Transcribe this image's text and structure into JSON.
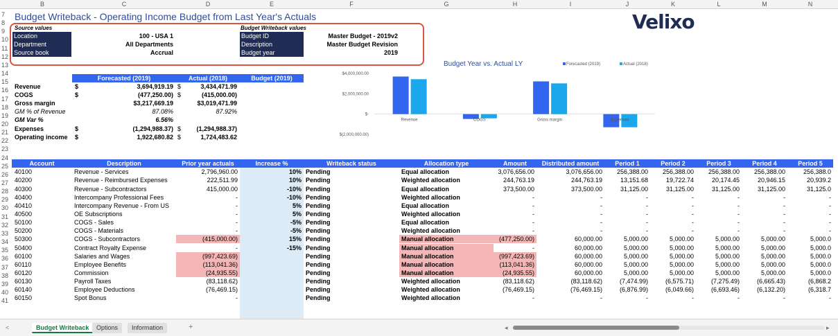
{
  "columns": [
    "B",
    "C",
    "D",
    "E",
    "F",
    "G",
    "H",
    "I",
    "J",
    "K",
    "L",
    "M",
    "N"
  ],
  "title": "Budget Writeback - Operating Income Budget from Last Year's Actuals",
  "logo": "Velixo",
  "source": {
    "header": "Source values",
    "rows": [
      {
        "label": "Location",
        "value": "100 - USA 1"
      },
      {
        "label": "Department",
        "value": "All Departments"
      },
      {
        "label": "Source book",
        "value": "Accrual"
      }
    ]
  },
  "writeback": {
    "header": "Budget Writeback values",
    "rows": [
      {
        "label": "Budget ID",
        "value": "Master Budget - 2019v2"
      },
      {
        "label": "Description",
        "value": "Master Budget Revision"
      },
      {
        "label": "Budget year",
        "value": "2019"
      }
    ]
  },
  "summary": {
    "headers": [
      "Forecasted (2019)",
      "Actual (2018)",
      "Budget (2019)"
    ],
    "rows": [
      {
        "label": "Revenue",
        "cur1": "$",
        "fc": "3,694,919.19",
        "cur2": "$",
        "act": "3,434,471.99",
        "style": "b"
      },
      {
        "label": "COGS",
        "cur1": "$",
        "fc": "(477,250.00)",
        "cur2": "$",
        "act": "(415,000.00)",
        "style": "b"
      },
      {
        "label": "Gross margin",
        "cur1": "",
        "fc": "$3,217,669.19",
        "cur2": "",
        "act": "$3,019,471.99",
        "style": "b"
      },
      {
        "label": "GM % of Revenue",
        "cur1": "",
        "fc": "87.08%",
        "cur2": "",
        "act": "87.92%",
        "style": "i"
      },
      {
        "label": "GM Var %",
        "cur1": "",
        "fc": "6.56%",
        "cur2": "",
        "act": "",
        "style": "bi"
      },
      {
        "label": "Expenses",
        "cur1": "$",
        "fc": "(1,294,988.37)",
        "cur2": "$",
        "act": "(1,294,988.37)",
        "style": "b"
      },
      {
        "label": "Operating income",
        "cur1": "$",
        "fc": "1,922,680.82",
        "cur2": "$",
        "act": "1,724,483.62",
        "style": "b"
      }
    ]
  },
  "chart_data": {
    "type": "bar",
    "title": "Budget Year vs. Actual LY",
    "categories": [
      "Revenue",
      "COGS",
      "Gross margin",
      "Expenses"
    ],
    "series": [
      {
        "name": "Forecasted (2019)",
        "color": "#3366ee",
        "values": [
          3694919.19,
          -477250.0,
          3217669.19,
          -1294988.37
        ]
      },
      {
        "name": "Actual (2018)",
        "color": "#1aa7ec",
        "values": [
          3434471.99,
          -415000.0,
          3019471.99,
          -1294988.37
        ]
      }
    ],
    "yticks": [
      "$4,000,000.00",
      "$2,000,000.00",
      "$-",
      "$(2,000,000.00)"
    ],
    "ytick_values": [
      4000000,
      2000000,
      0,
      -2000000
    ],
    "ylim": [
      -2000000,
      4000000
    ],
    "legend": "top-right",
    "grid": false
  },
  "table": {
    "headers": [
      "Account",
      "Description",
      "Prior year actuals",
      "Increase %",
      "Writeback status",
      "Allocation type",
      "Amount",
      "Distributed amount",
      "Period 1",
      "Period 2",
      "Period 3",
      "Period 4",
      "Period 5"
    ],
    "rows": [
      [
        "40100",
        "Revenue - Services",
        "2,796,960.00",
        "10%",
        "Pending",
        "Equal allocation",
        "3,076,656.00",
        "3,076,656.00",
        "256,388.00",
        "256,388.00",
        "256,388.00",
        "256,388.00",
        "256,388.0"
      ],
      [
        "40200",
        "Revenue - Reimbursed Expenses",
        "222,511.99",
        "10%",
        "Pending",
        "Weighted allocation",
        "244,763.19",
        "244,763.19",
        "13,151.68",
        "19,722.74",
        "20,174.45",
        "20,946.15",
        "20,939.2"
      ],
      [
        "40300",
        "Revenue - Subcontractors",
        "415,000.00",
        "-10%",
        "Pending",
        "Equal allocation",
        "373,500.00",
        "373,500.00",
        "31,125.00",
        "31,125.00",
        "31,125.00",
        "31,125.00",
        "31,125.0"
      ],
      [
        "40400",
        "Intercompany Professional Fees",
        "-",
        "-10%",
        "Pending",
        "Weighted allocation",
        "-",
        "-",
        "-",
        "-",
        "-",
        "-",
        "-"
      ],
      [
        "40410",
        "Intercompany Revenue - From US",
        "-",
        "5%",
        "Pending",
        "Equal allocation",
        "-",
        "-",
        "-",
        "-",
        "-",
        "-",
        "-"
      ],
      [
        "40500",
        "OE Subscriptions",
        "-",
        "5%",
        "Pending",
        "Weighted allocation",
        "-",
        "-",
        "-",
        "-",
        "-",
        "-",
        "-"
      ],
      [
        "50100",
        "COGS - Sales",
        "-",
        "-5%",
        "Pending",
        "Equal allocation",
        "-",
        "-",
        "-",
        "-",
        "-",
        "-",
        "-"
      ],
      [
        "50200",
        "COGS - Materials",
        "-",
        "-5%",
        "Pending",
        "Weighted allocation",
        "-",
        "-",
        "-",
        "-",
        "-",
        "-",
        "-"
      ],
      [
        "50300",
        "COGS - Subcontractors",
        "(415,000.00)",
        "15%",
        "Pending",
        "Manual allocation",
        "(477,250.00)",
        "60,000.00",
        "5,000.00",
        "5,000.00",
        "5,000.00",
        "5,000.00",
        "5,000.0"
      ],
      [
        "50400",
        "Contract Royalty Expense",
        "-",
        "-15%",
        "Pending",
        "Manual allocation",
        "-",
        "60,000.00",
        "5,000.00",
        "5,000.00",
        "5,000.00",
        "5,000.00",
        "5,000.0"
      ],
      [
        "60100",
        "Salaries and Wages",
        "(997,423.69)",
        "",
        "Pending",
        "Manual allocation",
        "(997,423.69)",
        "60,000.00",
        "5,000.00",
        "5,000.00",
        "5,000.00",
        "5,000.00",
        "5,000.0"
      ],
      [
        "60110",
        "Employee Benefits",
        "(113,041.36)",
        "",
        "Pending",
        "Manual allocation",
        "(113,041.36)",
        "60,000.00",
        "5,000.00",
        "5,000.00",
        "5,000.00",
        "5,000.00",
        "5,000.0"
      ],
      [
        "60120",
        "Commission",
        "(24,935.55)",
        "",
        "Pending",
        "Manual allocation",
        "(24,935.55)",
        "60,000.00",
        "5,000.00",
        "5,000.00",
        "5,000.00",
        "5,000.00",
        "5,000.0"
      ],
      [
        "60130",
        "Payroll Taxes",
        "(83,118.62)",
        "",
        "Pending",
        "Weighted allocation",
        "(83,118.62)",
        "(83,118.62)",
        "(7,474.99)",
        "(6,575.71)",
        "(7,275.49)",
        "(6,665.43)",
        "(6,868.2"
      ],
      [
        "60140",
        "Employee Deductions",
        "(76,469.15)",
        "",
        "Pending",
        "Weighted allocation",
        "(76,469.15)",
        "(76,469.15)",
        "(6,876.99)",
        "(6,049.66)",
        "(6,693.46)",
        "(6,132.20)",
        "(6,318.7"
      ],
      [
        "60150",
        "Spot Bonus",
        "-",
        "",
        "Pending",
        "Weighted allocation",
        "-",
        "-",
        "-",
        "-",
        "-",
        "-",
        "-"
      ]
    ],
    "pink_rows": [
      8,
      9,
      10,
      11,
      12
    ]
  },
  "row_numbers": [
    "7",
    "8",
    "9",
    "10",
    "11",
    "12",
    "13",
    "14",
    "15",
    "16",
    "17",
    "18",
    "19",
    "20",
    "21",
    "22",
    "23",
    "24",
    "25",
    "26",
    "27",
    "28",
    "29",
    "30",
    "31",
    "32",
    "33",
    "34",
    "35",
    "36",
    "37",
    "38",
    "39",
    "40",
    "41"
  ],
  "sheet_tabs": [
    "Budget Writeback",
    "Options",
    "Information"
  ],
  "add_sheet": "+",
  "nav_prev": "<",
  "nav_next": ">"
}
